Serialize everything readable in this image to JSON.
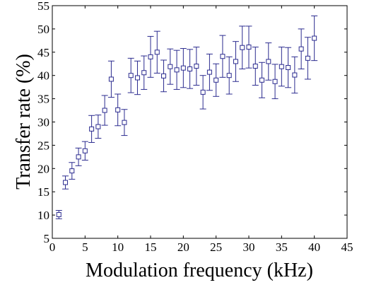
{
  "chart_data": {
    "type": "scatter",
    "title": "",
    "xlabel": "Modulation frequency (kHz)",
    "ylabel": "Transfer rate (%)",
    "xlim": [
      0,
      45
    ],
    "ylim": [
      5,
      55
    ],
    "xticks": [
      "0",
      "5",
      "10",
      "15",
      "20",
      "25",
      "30",
      "35",
      "40",
      "45"
    ],
    "yticks": [
      "5",
      "10",
      "15",
      "20",
      "25",
      "30",
      "35",
      "40",
      "45",
      "50",
      "55"
    ],
    "grid": false,
    "legend": "none",
    "marker": "square",
    "error_bars": true,
    "color": "#2b2b8f",
    "series": [
      {
        "x": [
          1,
          2,
          3,
          4,
          5,
          6,
          7,
          8,
          9,
          10,
          11,
          12,
          13,
          14,
          15,
          16,
          17,
          18,
          19,
          20,
          21,
          22,
          23,
          24,
          25,
          26,
          27,
          28,
          29,
          30,
          31,
          32,
          33,
          34,
          35,
          36,
          37,
          38,
          39,
          40
        ],
        "y": [
          10.1,
          17.0,
          19.5,
          22.5,
          23.8,
          28.5,
          29.0,
          32.5,
          39.2,
          32.6,
          29.9,
          40.0,
          39.5,
          40.6,
          44.0,
          45.0,
          39.9,
          41.9,
          41.2,
          41.6,
          41.4,
          42.0,
          36.4,
          40.7,
          39.0,
          44.1,
          40.0,
          43.0,
          46.0,
          46.1,
          42.0,
          39.0,
          43.0,
          38.7,
          41.9,
          41.7,
          40.1,
          45.7,
          43.7,
          48.0
        ],
        "err": [
          0.9,
          1.4,
          1.8,
          1.9,
          2.0,
          2.9,
          2.5,
          3.2,
          3.9,
          3.4,
          2.8,
          3.7,
          3.6,
          3.6,
          4.4,
          4.5,
          3.4,
          3.8,
          4.2,
          4.2,
          4.2,
          4.1,
          3.6,
          3.9,
          3.5,
          4.5,
          4.0,
          4.3,
          4.6,
          4.5,
          4.1,
          3.8,
          4.0,
          3.7,
          4.2,
          4.3,
          3.9,
          4.3,
          4.5,
          4.8
        ]
      }
    ]
  }
}
